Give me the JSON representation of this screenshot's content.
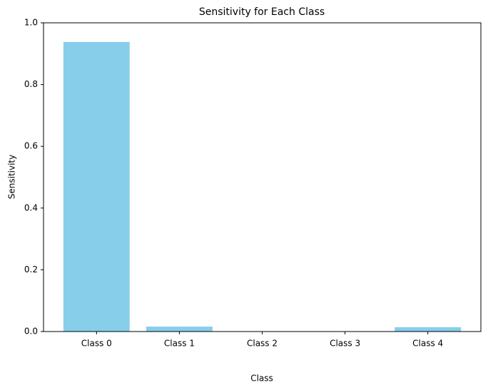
{
  "chart_data": {
    "type": "bar",
    "title": "Sensitivity for Each Class",
    "x_label": "Class",
    "y_label": "Sensitivity",
    "categories": [
      "Class 0",
      "Class 1",
      "Class 2",
      "Class 3",
      "Class 4"
    ],
    "values": [
      0.938,
      0.016,
      0,
      0,
      0.014
    ],
    "color": "#87ceeb",
    "ylim": [
      0,
      1
    ],
    "yticks": [
      {
        "value": 0,
        "label": "0.0"
      },
      0.2,
      0.4,
      0.6,
      0.8,
      {
        "value": 1,
        "label": "1.0"
      }
    ],
    "grid": false
  }
}
